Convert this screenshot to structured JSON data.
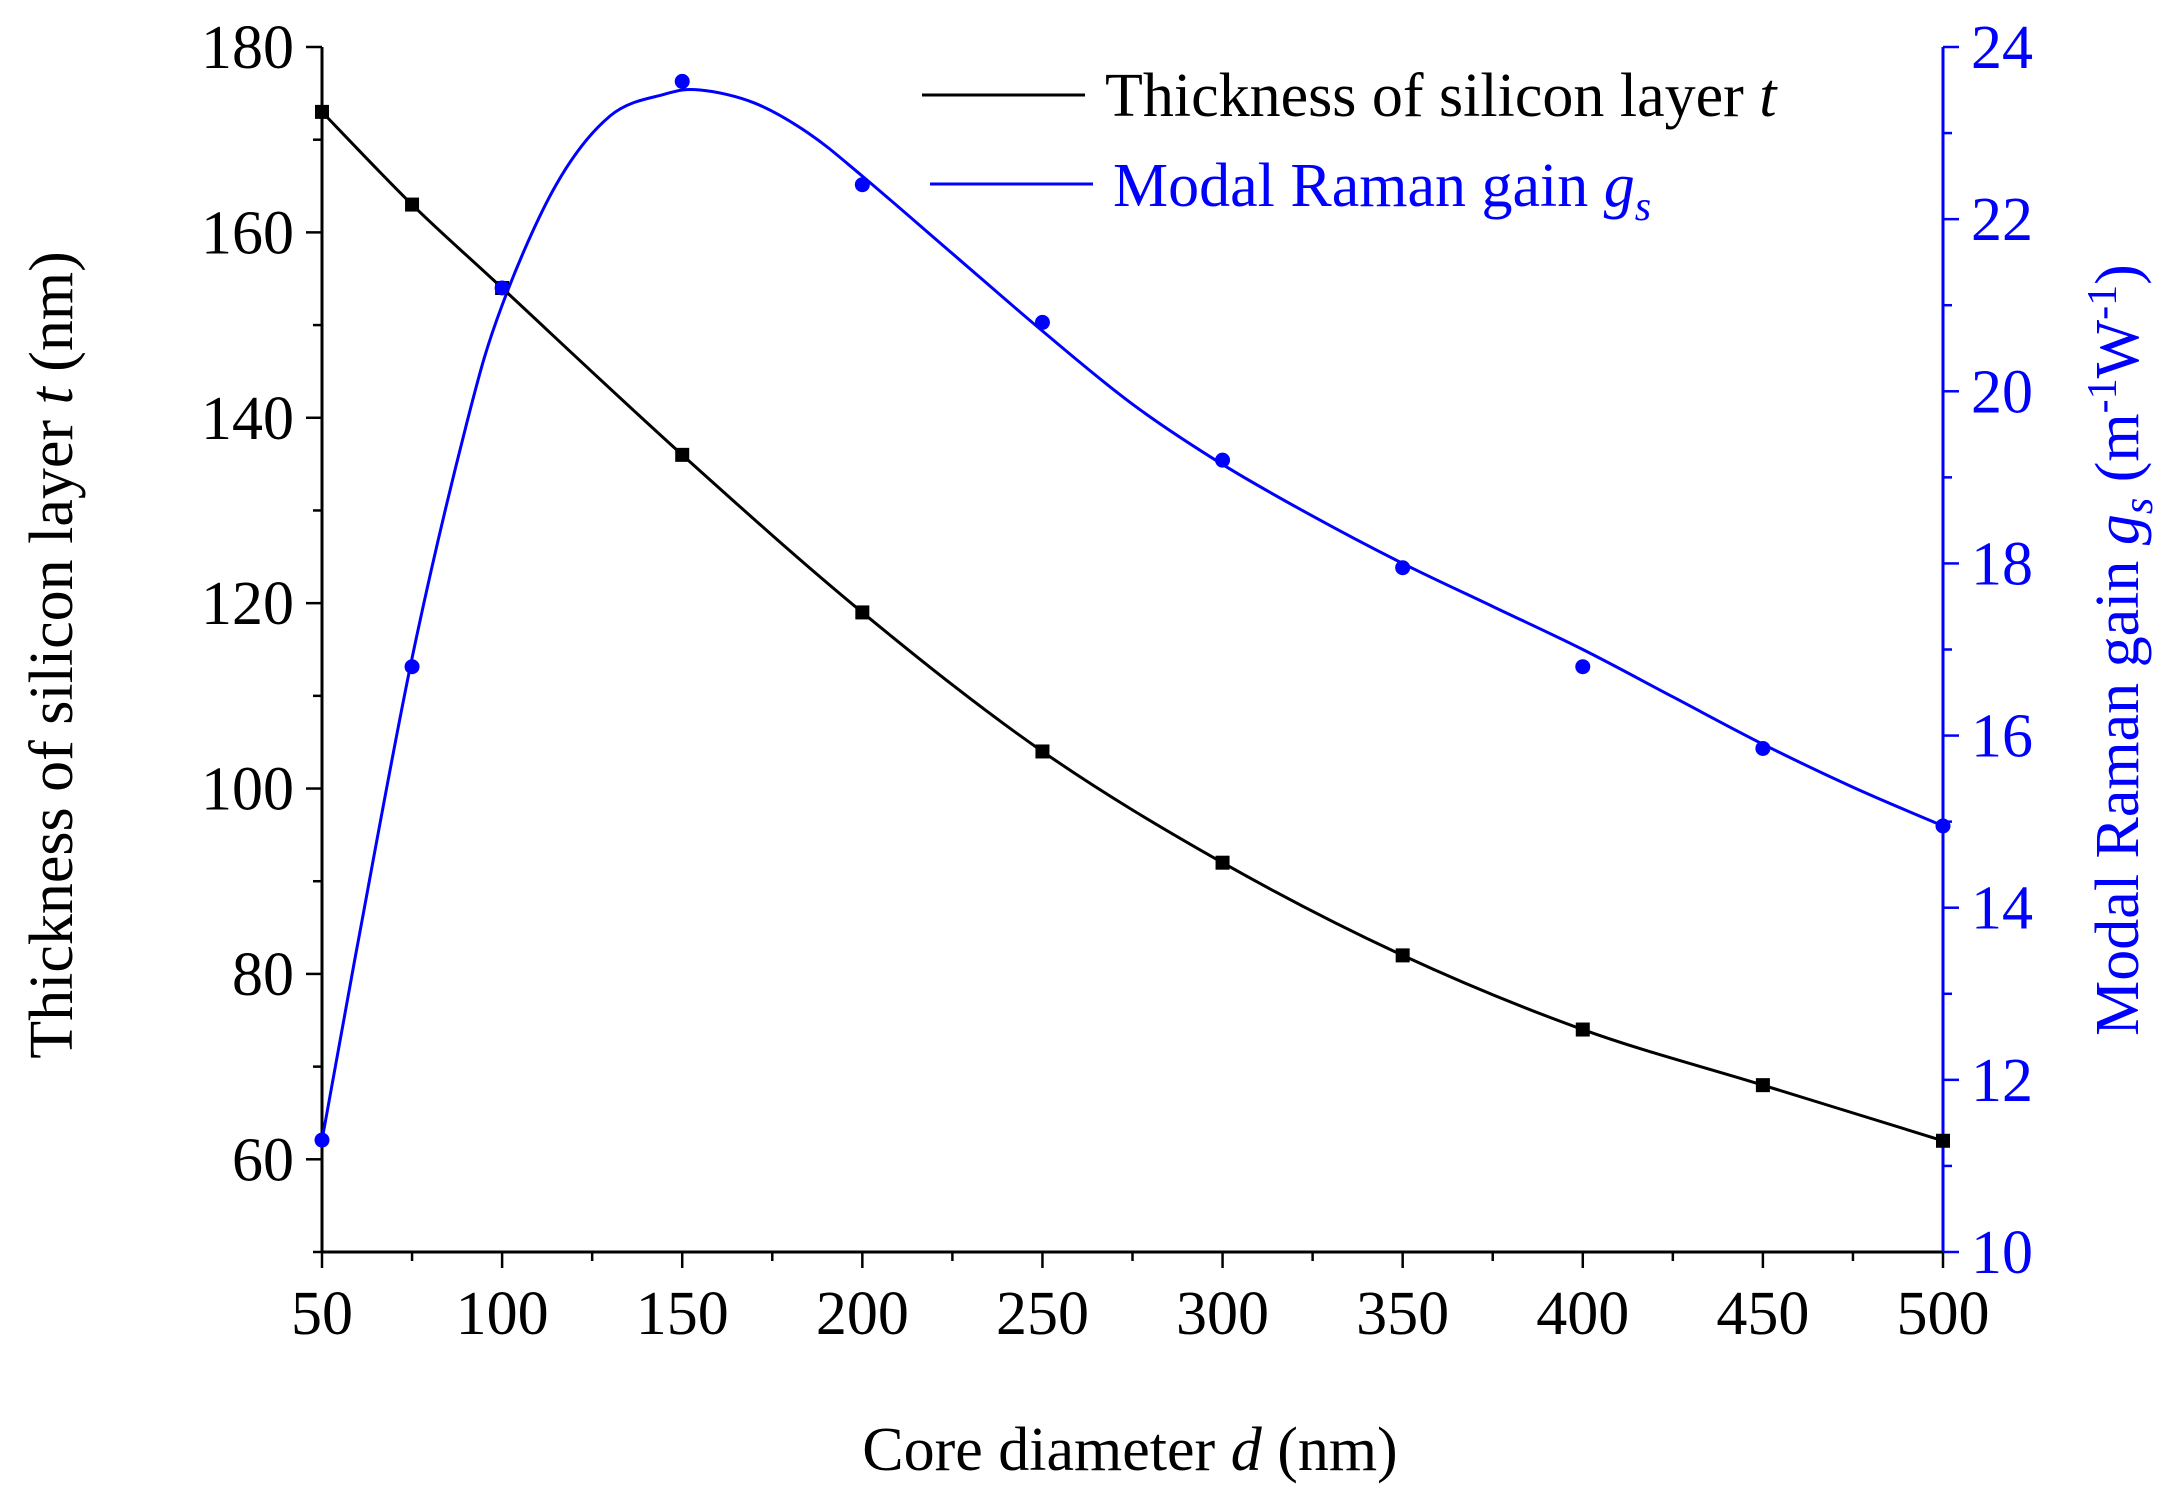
{
  "chart_data": {
    "type": "line",
    "x": [
      50,
      75,
      100,
      150,
      200,
      250,
      300,
      350,
      400,
      450,
      500
    ],
    "xlabel": {
      "prefix": "Core diameter ",
      "italic": "d",
      "suffix": " (nm)"
    },
    "xlim": [
      50,
      500
    ],
    "xticks": [
      "50",
      "100",
      "150",
      "200",
      "250",
      "300",
      "350",
      "400",
      "450",
      "500"
    ],
    "series": [
      {
        "name": "Thickness of silicon layer t",
        "legend": {
          "text": "Thickness of silicon layer ",
          "italic": "t"
        },
        "axis": "left",
        "color": "#000000",
        "marker": "square",
        "values": [
          173,
          163,
          154,
          136,
          119,
          104,
          92,
          82,
          74,
          68,
          62
        ]
      },
      {
        "name": "Modal Raman gain g_s",
        "legend": {
          "text": "Modal Raman gain ",
          "italic": "g",
          "sub": "s"
        },
        "axis": "right",
        "color": "#0000ff",
        "marker": "circle",
        "values": [
          11.3,
          16.8,
          21.2,
          23.6,
          22.4,
          20.8,
          19.2,
          17.95,
          16.8,
          15.85,
          14.95
        ],
        "fit_curve": [
          [
            50,
            11.3
          ],
          [
            60,
            13.6
          ],
          [
            75,
            16.9
          ],
          [
            90,
            19.6
          ],
          [
            100,
            21.0
          ],
          [
            115,
            22.4
          ],
          [
            130,
            23.2
          ],
          [
            145,
            23.45
          ],
          [
            155,
            23.5
          ],
          [
            170,
            23.35
          ],
          [
            185,
            23.0
          ],
          [
            200,
            22.5
          ],
          [
            225,
            21.6
          ],
          [
            250,
            20.7
          ],
          [
            275,
            19.85
          ],
          [
            300,
            19.15
          ],
          [
            325,
            18.55
          ],
          [
            350,
            18.0
          ],
          [
            375,
            17.5
          ],
          [
            400,
            17.0
          ],
          [
            425,
            16.45
          ],
          [
            450,
            15.9
          ],
          [
            475,
            15.4
          ],
          [
            500,
            14.95
          ]
        ]
      }
    ],
    "y_left": {
      "label": {
        "prefix": "Thickness of silicon layer ",
        "italic": "t",
        "suffix": " (nm)"
      },
      "ylim": [
        50,
        180
      ],
      "ticks": [
        "60",
        "80",
        "100",
        "120",
        "140",
        "160",
        "180"
      ]
    },
    "y_right": {
      "label": {
        "prefix": "Modal Raman gain ",
        "italic": "g",
        "sub": "s",
        "suffix": " (m",
        "sup1": "-1",
        "mid": "W",
        "sup2": "-1",
        "end": ")"
      },
      "ylim": [
        10,
        24
      ],
      "ticks": [
        "10",
        "12",
        "14",
        "16",
        "18",
        "20",
        "22",
        "24"
      ]
    },
    "grid": false,
    "legend_position": "top-right"
  }
}
